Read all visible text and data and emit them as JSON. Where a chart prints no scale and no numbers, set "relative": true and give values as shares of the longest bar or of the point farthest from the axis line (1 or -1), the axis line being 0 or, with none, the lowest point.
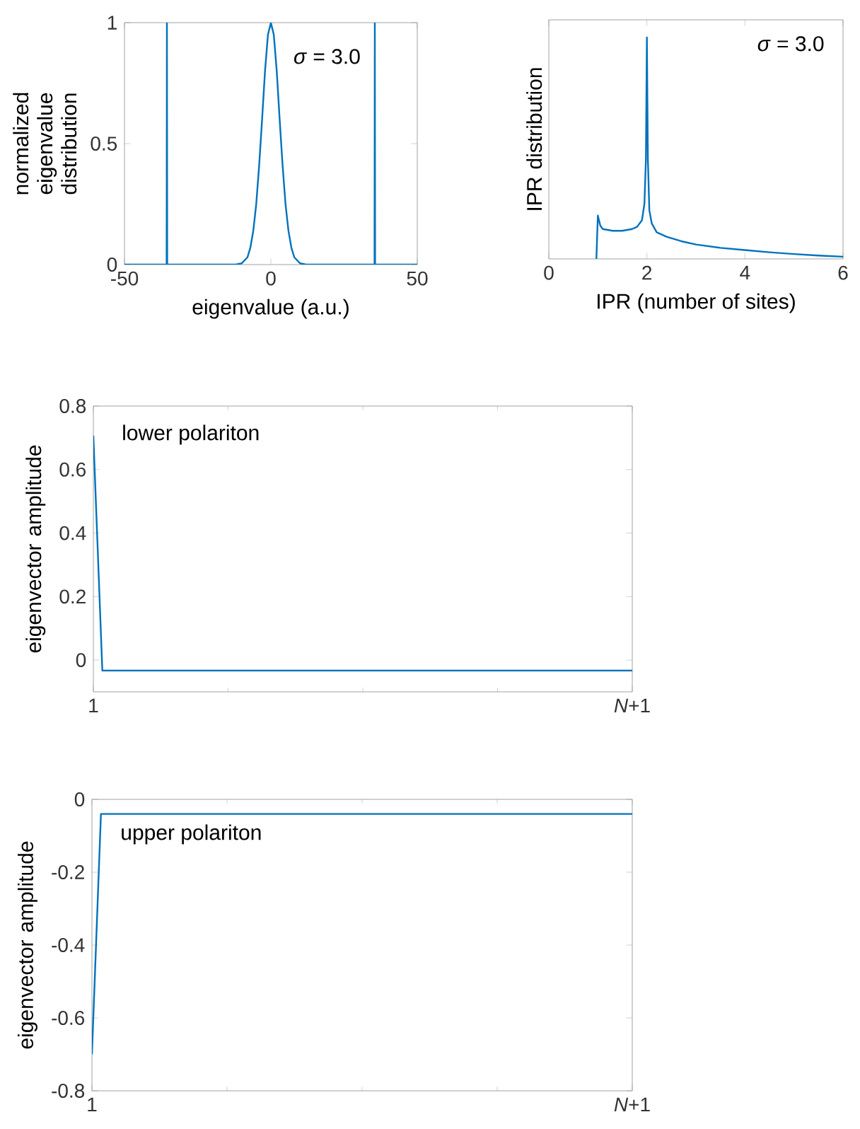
{
  "chart_data": [
    {
      "type": "line",
      "xlabel": "eigenvalue (a.u.)",
      "ylabel": "normalized eigenvalue distribution",
      "annotations": [
        "*σ* = 3.0"
      ],
      "xlim": [
        -50,
        50
      ],
      "ylim": [
        0,
        1
      ],
      "xticks": [
        -50,
        0,
        50
      ],
      "yticks": [
        0,
        0.5,
        1
      ],
      "series": [
        {
          "color": "#0072bd",
          "x": [
            -50,
            -35.6,
            -35.5,
            -35.4,
            -12,
            -10,
            -8,
            -7,
            -6,
            -5,
            -4,
            -3,
            -2,
            -1,
            0,
            1,
            2,
            3,
            4,
            5,
            6,
            7,
            8,
            10,
            12,
            35.4,
            35.5,
            35.6,
            50
          ],
          "values": [
            0,
            0,
            1,
            0,
            0,
            0.005,
            0.03,
            0.07,
            0.14,
            0.25,
            0.41,
            0.6,
            0.8,
            0.95,
            1,
            0.95,
            0.8,
            0.6,
            0.41,
            0.25,
            0.14,
            0.07,
            0.03,
            0.005,
            0,
            0,
            1,
            0,
            0
          ]
        }
      ]
    },
    {
      "type": "line",
      "xlabel": "IPR (number of sites)",
      "ylabel": "IPR distribution",
      "annotations": [
        "*σ* = 3.0"
      ],
      "relative": true,
      "xlim": [
        0,
        6
      ],
      "xticks": [
        0,
        2,
        4,
        6
      ],
      "series": [
        {
          "color": "#0072bd",
          "x": [
            0.97,
            1.0,
            1.05,
            1.1,
            1.3,
            1.5,
            1.7,
            1.8,
            1.9,
            1.95,
            1.98,
            2.0,
            2.02,
            2.05,
            2.1,
            2.2,
            2.4,
            2.7,
            3,
            3.5,
            4,
            4.5,
            5,
            5.5,
            6
          ],
          "values": [
            0,
            0.196,
            0.15,
            0.135,
            0.127,
            0.127,
            0.135,
            0.145,
            0.175,
            0.25,
            0.45,
            1,
            0.45,
            0.22,
            0.16,
            0.12,
            0.1,
            0.08,
            0.065,
            0.05,
            0.04,
            0.03,
            0.022,
            0.015,
            0.01
          ]
        }
      ]
    },
    {
      "type": "line",
      "ylabel": "eigenvector amplitude",
      "annotations": [
        "lower polariton"
      ],
      "ylim": [
        -0.1,
        0.8
      ],
      "yticks": [
        0,
        0.2,
        0.4,
        0.6,
        0.8
      ],
      "categories": [
        "1",
        null,
        null,
        null,
        null,
        null,
        null,
        null,
        null,
        null,
        null,
        null,
        null,
        null,
        null,
        null,
        null,
        null,
        null,
        null,
        null,
        null,
        null,
        null,
        null,
        null,
        null,
        null,
        null,
        null,
        null,
        null,
        null,
        null,
        null,
        null,
        null,
        null,
        null,
        null,
        null,
        null,
        null,
        null,
        null,
        null,
        null,
        null,
        null,
        null,
        null,
        null,
        null,
        null,
        null,
        null,
        null,
        null,
        null,
        null,
        "*N*+1"
      ],
      "series": [
        {
          "color": "#0072bd",
          "values": [
            0.707,
            -0.033,
            -0.033,
            -0.033,
            -0.033,
            -0.033,
            -0.033,
            -0.033,
            -0.033,
            -0.033,
            -0.033,
            -0.033,
            -0.033,
            -0.033,
            -0.033,
            -0.033,
            -0.033,
            -0.033,
            -0.033,
            -0.033,
            -0.033,
            -0.033,
            -0.033,
            -0.033,
            -0.033,
            -0.033,
            -0.033,
            -0.033,
            -0.033,
            -0.033,
            -0.033,
            -0.033,
            -0.033,
            -0.033,
            -0.033,
            -0.033,
            -0.033,
            -0.033,
            -0.033,
            -0.033,
            -0.033,
            -0.033,
            -0.033,
            -0.033,
            -0.033,
            -0.033,
            -0.033,
            -0.033,
            -0.033,
            -0.033,
            -0.033,
            -0.033,
            -0.033,
            -0.033,
            -0.033,
            -0.033,
            -0.033,
            -0.033,
            -0.033,
            -0.033,
            -0.033
          ]
        }
      ]
    },
    {
      "type": "line",
      "ylabel": "eigenvector amplitude",
      "annotations": [
        "upper polariton"
      ],
      "ylim": [
        -0.8,
        0
      ],
      "yticks": [
        -0.8,
        -0.6,
        -0.4,
        -0.2,
        0
      ],
      "categories": [
        "1",
        null,
        null,
        null,
        null,
        null,
        null,
        null,
        null,
        null,
        null,
        null,
        null,
        null,
        null,
        null,
        null,
        null,
        null,
        null,
        null,
        null,
        null,
        null,
        null,
        null,
        null,
        null,
        null,
        null,
        null,
        null,
        null,
        null,
        null,
        null,
        null,
        null,
        null,
        null,
        null,
        null,
        null,
        null,
        null,
        null,
        null,
        null,
        null,
        null,
        null,
        null,
        null,
        null,
        null,
        null,
        null,
        null,
        null,
        null,
        "*N*+1"
      ],
      "series": [
        {
          "color": "#0072bd",
          "values": [
            -0.7,
            -0.04,
            -0.04,
            -0.04,
            -0.04,
            -0.04,
            -0.04,
            -0.04,
            -0.04,
            -0.04,
            -0.04,
            -0.04,
            -0.04,
            -0.04,
            -0.04,
            -0.04,
            -0.04,
            -0.04,
            -0.04,
            -0.04,
            -0.04,
            -0.04,
            -0.04,
            -0.04,
            -0.04,
            -0.04,
            -0.04,
            -0.04,
            -0.04,
            -0.04,
            -0.04,
            -0.04,
            -0.04,
            -0.04,
            -0.04,
            -0.04,
            -0.04,
            -0.04,
            -0.04,
            -0.04,
            -0.04,
            -0.04,
            -0.04,
            -0.04,
            -0.04,
            -0.04,
            -0.04,
            -0.04,
            -0.04,
            -0.04,
            -0.04,
            -0.04,
            -0.04,
            -0.04,
            -0.04,
            -0.04,
            -0.04,
            -0.04,
            -0.04,
            -0.04,
            -0.04
          ]
        }
      ]
    }
  ]
}
